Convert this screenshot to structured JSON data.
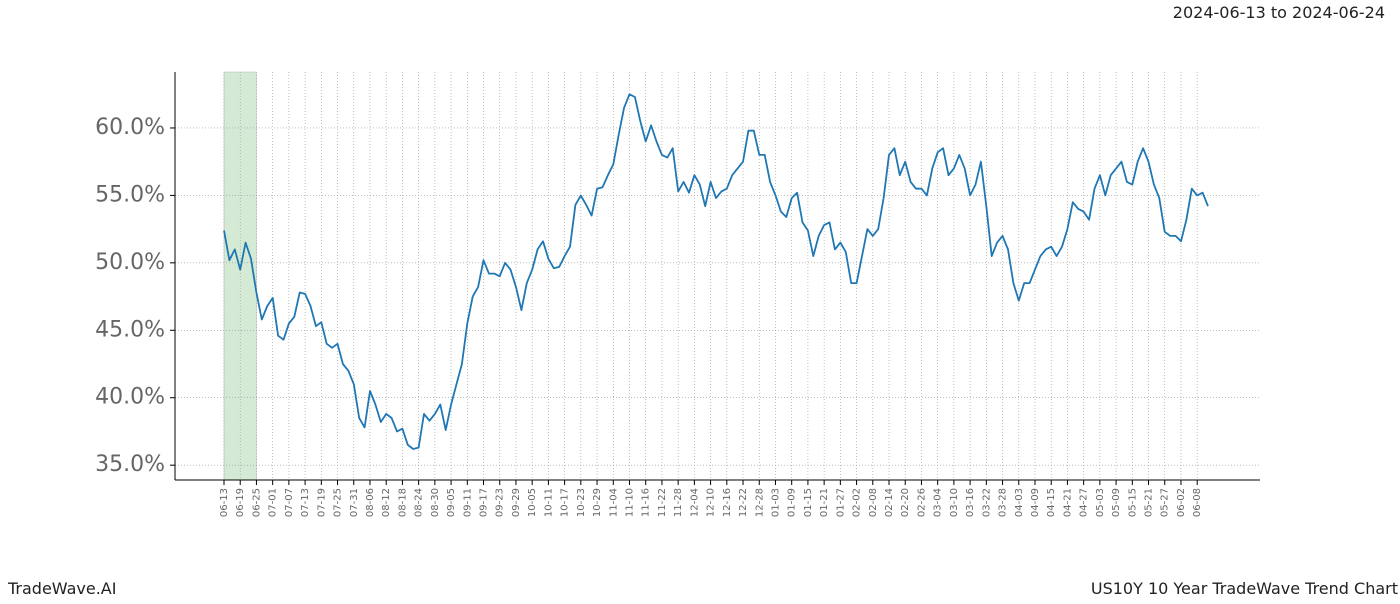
{
  "header": {
    "date_range": "2024-06-13 to 2024-06-24"
  },
  "footer": {
    "brand": "TradeWave.AI",
    "caption": "US10Y 10 Year TradeWave Trend Chart"
  },
  "chart_data": {
    "type": "line",
    "color": "#1f77b4",
    "grid": true,
    "shaded_range": [
      "06-13",
      "06-25"
    ],
    "shade_color": "#d5ead5",
    "ylim": [
      33.9,
      64.15
    ],
    "yticks": [
      {
        "value": 35,
        "label": "35.0%"
      },
      {
        "value": 40,
        "label": "40.0%"
      },
      {
        "value": 45,
        "label": "45.0%"
      },
      {
        "value": 50,
        "label": "50.0%"
      },
      {
        "value": 55,
        "label": "55.0%"
      },
      {
        "value": 60,
        "label": "60.0%"
      }
    ],
    "categories": [
      "06-13",
      null,
      null,
      "06-19",
      null,
      null,
      "06-25",
      null,
      null,
      "07-01",
      null,
      null,
      "07-07",
      null,
      null,
      "07-13",
      null,
      null,
      "07-19",
      null,
      null,
      "07-25",
      null,
      null,
      "07-31",
      null,
      null,
      "08-06",
      null,
      null,
      "08-12",
      null,
      null,
      "08-18",
      null,
      null,
      "08-24",
      null,
      null,
      "08-30",
      null,
      null,
      "09-05",
      null,
      null,
      "09-11",
      null,
      null,
      "09-17",
      null,
      null,
      "09-23",
      null,
      null,
      "09-29",
      null,
      null,
      "10-05",
      null,
      null,
      "10-11",
      null,
      null,
      "10-17",
      null,
      null,
      "10-23",
      null,
      null,
      "10-29",
      null,
      null,
      "11-04",
      null,
      null,
      "11-10",
      null,
      null,
      "11-16",
      null,
      null,
      "11-22",
      null,
      null,
      "11-28",
      null,
      null,
      "12-04",
      null,
      null,
      "12-10",
      null,
      null,
      "12-16",
      null,
      null,
      "12-22",
      null,
      null,
      "12-28",
      null,
      null,
      "01-03",
      null,
      null,
      "01-09",
      null,
      null,
      "01-15",
      null,
      null,
      "01-21",
      null,
      null,
      "01-27",
      null,
      null,
      "02-02",
      null,
      null,
      "02-08",
      null,
      null,
      "02-14",
      null,
      null,
      "02-20",
      null,
      null,
      "02-26",
      null,
      null,
      "03-04",
      null,
      null,
      "03-10",
      null,
      null,
      "03-16",
      null,
      null,
      "03-22",
      null,
      null,
      "03-28",
      null,
      null,
      "04-03",
      null,
      null,
      "04-09",
      null,
      null,
      "04-15",
      null,
      null,
      "04-21",
      null,
      null,
      "04-27",
      null,
      null,
      "05-03",
      null,
      null,
      "05-09",
      null,
      null,
      "05-15",
      null,
      null,
      "05-21",
      null,
      null,
      "05-27",
      null,
      null,
      "06-02",
      null,
      null,
      "06-08",
      null,
      null
    ],
    "values": [
      52.4,
      50.2,
      51,
      49.5,
      51.5,
      50.3,
      47.8,
      45.8,
      46.8,
      47.4,
      44.6,
      44.3,
      45.5,
      46,
      47.8,
      47.7,
      46.8,
      45.3,
      45.6,
      44,
      43.7,
      44,
      42.5,
      42,
      41,
      38.5,
      37.8,
      40.5,
      39.5,
      38.2,
      38.8,
      38.5,
      37.5,
      37.7,
      36.5,
      36.2,
      36.3,
      38.8,
      38.3,
      38.8,
      39.5,
      37.6,
      39.5,
      41,
      42.5,
      45.5,
      47.5,
      48.2,
      50.2,
      49.2,
      49.2,
      49,
      50,
      49.5,
      48.2,
      46.5,
      48.5,
      49.5,
      51,
      51.6,
      50.3,
      49.6,
      49.7,
      50.5,
      51.2,
      54.3,
      55,
      54.3,
      53.5,
      55.5,
      55.6,
      56.5,
      57.3,
      59.5,
      61.5,
      62.5,
      62.3,
      60.5,
      59,
      60.2,
      59,
      58,
      57.8,
      58.5,
      55.3,
      56,
      55.2,
      56.5,
      55.8,
      54.2,
      56,
      54.8,
      55.3,
      55.5,
      56.5,
      57,
      57.5,
      59.8,
      59.8,
      58,
      58,
      56,
      55,
      53.8,
      53.4,
      54.8,
      55.2,
      53,
      52.4,
      50.5,
      52,
      52.8,
      53,
      51,
      51.5,
      50.8,
      48.5,
      48.5,
      50.5,
      52.5,
      52,
      52.5,
      54.8,
      58,
      58.5,
      56.5,
      57.5,
      56,
      55.5,
      55.5,
      55,
      57,
      58.2,
      58.5,
      56.5,
      57,
      58,
      57,
      55,
      55.8,
      57.5,
      54.2,
      50.5,
      51.5,
      52,
      51,
      48.5,
      47.2,
      48.5,
      48.5,
      49.5,
      50.5,
      51,
      51.2,
      50.5,
      51.2,
      52.5,
      54.5,
      54,
      53.8,
      53.2,
      55.5,
      56.5,
      55,
      56.5,
      57,
      57.5,
      56,
      55.8,
      57.5,
      58.5,
      57.5,
      55.8,
      54.8,
      52.3,
      52,
      52,
      51.6,
      53.2,
      55.5,
      55,
      55.2,
      54.2
    ]
  }
}
